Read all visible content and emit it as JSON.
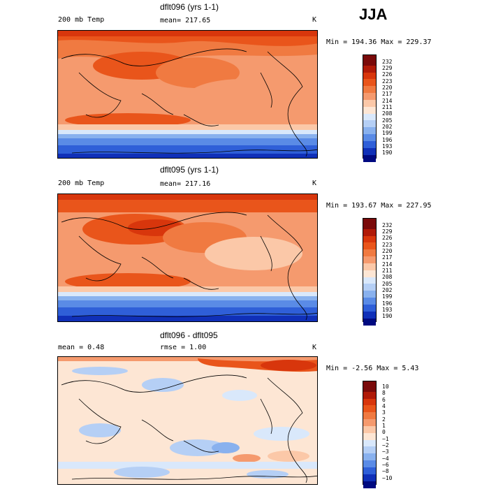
{
  "chart_data": {
    "type": "heatmap",
    "season": "JJA",
    "panels": [
      {
        "title": "dflt096 (yrs 1-1)",
        "left_label": "200 mb Temp",
        "center_label": "mean= 217.65",
        "units": "K",
        "stats": "Min = 194.36 Max = 229.37",
        "legend": [
          "232",
          "229",
          "226",
          "223",
          "220",
          "217",
          "214",
          "211",
          "208",
          "205",
          "202",
          "199",
          "196",
          "193",
          "190"
        ],
        "field_min": 194.36,
        "field_max": 229.37
      },
      {
        "title": "dflt095 (yrs 1-1)",
        "left_label": "200 mb Temp",
        "center_label": "mean= 217.16",
        "units": "K",
        "stats": "Min = 193.67 Max = 227.95",
        "legend": [
          "232",
          "229",
          "226",
          "223",
          "220",
          "217",
          "214",
          "211",
          "208",
          "205",
          "202",
          "199",
          "196",
          "193",
          "190"
        ],
        "field_min": 193.67,
        "field_max": 227.95
      },
      {
        "title": "dflt096 - dflt095",
        "left_label": "mean =   0.48",
        "center_label": "rmse =   1.00",
        "units": "K",
        "stats": "Min = -2.56 Max =  5.43",
        "legend": [
          "10",
          "8",
          "6",
          "4",
          "3",
          "2",
          "1",
          "0",
          "−1",
          "−2",
          "−3",
          "−4",
          "−6",
          "−8",
          "−10"
        ],
        "field_min": -2.56,
        "field_max": 5.43
      }
    ]
  },
  "colors": {
    "temp_scale": [
      "#7a0a0a",
      "#b01a08",
      "#d8360c",
      "#e9551b",
      "#f07a41",
      "#f59a6e",
      "#fbc8a8",
      "#fde6d4",
      "#d9e8fb",
      "#b5cff5",
      "#89b1ee",
      "#5a8be6",
      "#2f5fd8",
      "#1030b8",
      "#000a80"
    ],
    "diff_scale": [
      "#7a0a0a",
      "#b01a08",
      "#d8360c",
      "#e9551b",
      "#f07a41",
      "#f59a6e",
      "#fbc8a8",
      "#fde6d4",
      "#d9e8fb",
      "#b5cff5",
      "#89b1ee",
      "#5a8be6",
      "#2f5fd8",
      "#1030b8",
      "#000a80"
    ]
  }
}
